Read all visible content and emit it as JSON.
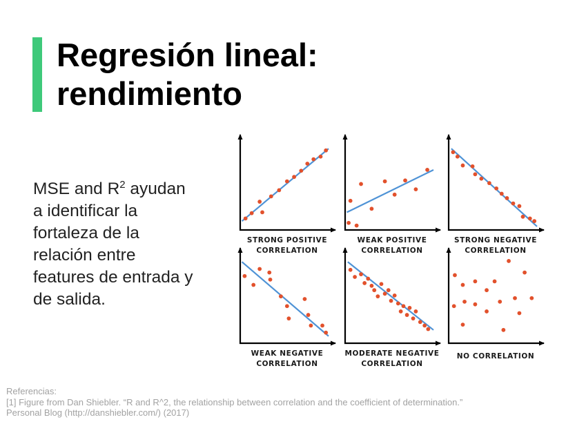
{
  "slide": {
    "title_line1": "Regresión lineal:",
    "title_line2": "rendimiento",
    "body": {
      "prefix": "MSE and R",
      "superscript": "2",
      "lines_after": [
        " ayudan",
        "a identificar la",
        "fortaleza de la",
        "relación entre",
        "features de entrada y",
        "de salida."
      ]
    },
    "references": {
      "heading": "Referencias:",
      "line1": "[1] Figure from Dan Shiebler. “R and R^2, the relationship between correlation and the coefficient of determination.”",
      "line2": "Personal Blog (http://danshiebler.com/) (2017)"
    },
    "colors": {
      "accent": "#3ec97a",
      "points": "#e2512c",
      "fit_line": "#4f93d6"
    }
  },
  "chart_data": [
    {
      "type": "scatter",
      "label": [
        "STRONG POSITIVE",
        "CORRELATION"
      ],
      "points": [
        [
          0.06,
          0.13
        ],
        [
          0.13,
          0.19
        ],
        [
          0.25,
          0.2
        ],
        [
          0.22,
          0.32
        ],
        [
          0.35,
          0.38
        ],
        [
          0.44,
          0.45
        ],
        [
          0.53,
          0.55
        ],
        [
          0.61,
          0.6
        ],
        [
          0.69,
          0.67
        ],
        [
          0.76,
          0.75
        ],
        [
          0.83,
          0.8
        ],
        [
          0.91,
          0.83
        ],
        [
          0.97,
          0.9
        ]
      ],
      "fit": [
        [
          0.02,
          0.1
        ],
        [
          1.0,
          0.92
        ]
      ]
    },
    {
      "type": "scatter",
      "label": [
        "WEAK POSITIVE",
        "CORRELATION"
      ],
      "points": [
        [
          0.04,
          0.08
        ],
        [
          0.13,
          0.05
        ],
        [
          0.06,
          0.33
        ],
        [
          0.18,
          0.52
        ],
        [
          0.3,
          0.24
        ],
        [
          0.45,
          0.55
        ],
        [
          0.56,
          0.4
        ],
        [
          0.68,
          0.56
        ],
        [
          0.8,
          0.46
        ],
        [
          0.93,
          0.68
        ]
      ],
      "fit": [
        [
          0.02,
          0.2
        ],
        [
          1.0,
          0.68
        ]
      ]
    },
    {
      "type": "scatter",
      "label": [
        "STRONG NEGATIVE",
        "CORRELATION"
      ],
      "points": [
        [
          0.05,
          0.88
        ],
        [
          0.1,
          0.83
        ],
        [
          0.16,
          0.73
        ],
        [
          0.27,
          0.72
        ],
        [
          0.3,
          0.63
        ],
        [
          0.37,
          0.58
        ],
        [
          0.46,
          0.53
        ],
        [
          0.54,
          0.47
        ],
        [
          0.6,
          0.41
        ],
        [
          0.66,
          0.36
        ],
        [
          0.73,
          0.3
        ],
        [
          0.8,
          0.27
        ],
        [
          0.84,
          0.15
        ],
        [
          0.92,
          0.13
        ],
        [
          0.97,
          0.1
        ]
      ],
      "fit": [
        [
          0.03,
          0.92
        ],
        [
          1.0,
          0.04
        ]
      ]
    },
    {
      "type": "scatter",
      "label": [
        "WEAK NEGATIVE",
        "CORRELATION"
      ],
      "points": [
        [
          0.05,
          0.76
        ],
        [
          0.15,
          0.66
        ],
        [
          0.22,
          0.84
        ],
        [
          0.33,
          0.8
        ],
        [
          0.34,
          0.72
        ],
        [
          0.46,
          0.53
        ],
        [
          0.53,
          0.42
        ],
        [
          0.55,
          0.28
        ],
        [
          0.73,
          0.5
        ],
        [
          0.77,
          0.32
        ],
        [
          0.8,
          0.2
        ],
        [
          0.93,
          0.2
        ],
        [
          0.97,
          0.12
        ]
      ],
      "fit": [
        [
          0.02,
          0.92
        ],
        [
          1.0,
          0.08
        ]
      ]
    },
    {
      "type": "scatter",
      "label": [
        "MODERATE NEGATIVE",
        "CORRELATION"
      ],
      "points": [
        [
          0.06,
          0.83
        ],
        [
          0.11,
          0.75
        ],
        [
          0.18,
          0.78
        ],
        [
          0.22,
          0.68
        ],
        [
          0.26,
          0.73
        ],
        [
          0.3,
          0.65
        ],
        [
          0.33,
          0.6
        ],
        [
          0.37,
          0.53
        ],
        [
          0.41,
          0.67
        ],
        [
          0.45,
          0.56
        ],
        [
          0.49,
          0.6
        ],
        [
          0.52,
          0.48
        ],
        [
          0.56,
          0.54
        ],
        [
          0.6,
          0.45
        ],
        [
          0.63,
          0.36
        ],
        [
          0.66,
          0.42
        ],
        [
          0.7,
          0.32
        ],
        [
          0.73,
          0.4
        ],
        [
          0.77,
          0.28
        ],
        [
          0.8,
          0.36
        ],
        [
          0.85,
          0.24
        ],
        [
          0.9,
          0.2
        ],
        [
          0.94,
          0.16
        ]
      ],
      "fit": [
        [
          0.03,
          0.92
        ],
        [
          1.0,
          0.15
        ]
      ]
    },
    {
      "type": "scatter",
      "label": [
        "NO CORRELATION"
      ],
      "points": [
        [
          0.07,
          0.77
        ],
        [
          0.06,
          0.42
        ],
        [
          0.16,
          0.66
        ],
        [
          0.18,
          0.47
        ],
        [
          0.16,
          0.21
        ],
        [
          0.3,
          0.7
        ],
        [
          0.3,
          0.44
        ],
        [
          0.43,
          0.6
        ],
        [
          0.43,
          0.36
        ],
        [
          0.52,
          0.7
        ],
        [
          0.58,
          0.47
        ],
        [
          0.62,
          0.15
        ],
        [
          0.68,
          0.93
        ],
        [
          0.75,
          0.51
        ],
        [
          0.8,
          0.34
        ],
        [
          0.86,
          0.8
        ],
        [
          0.94,
          0.51
        ]
      ],
      "fit": null
    }
  ]
}
